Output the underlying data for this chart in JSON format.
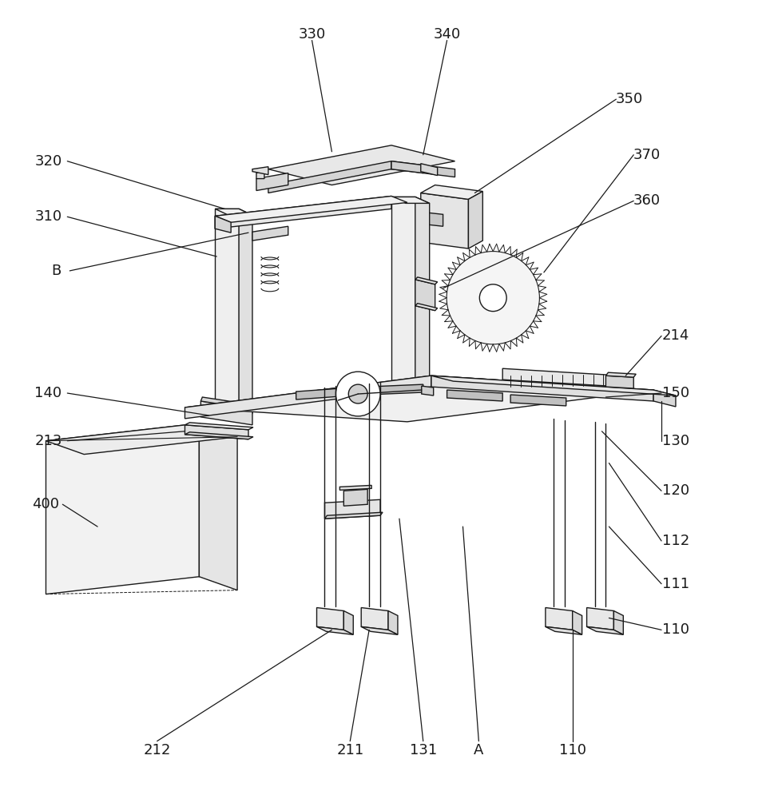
{
  "bg_color": "#ffffff",
  "line_color": "#1a1a1a",
  "lw": 1.0,
  "fig_width": 9.74,
  "fig_height": 10.0
}
